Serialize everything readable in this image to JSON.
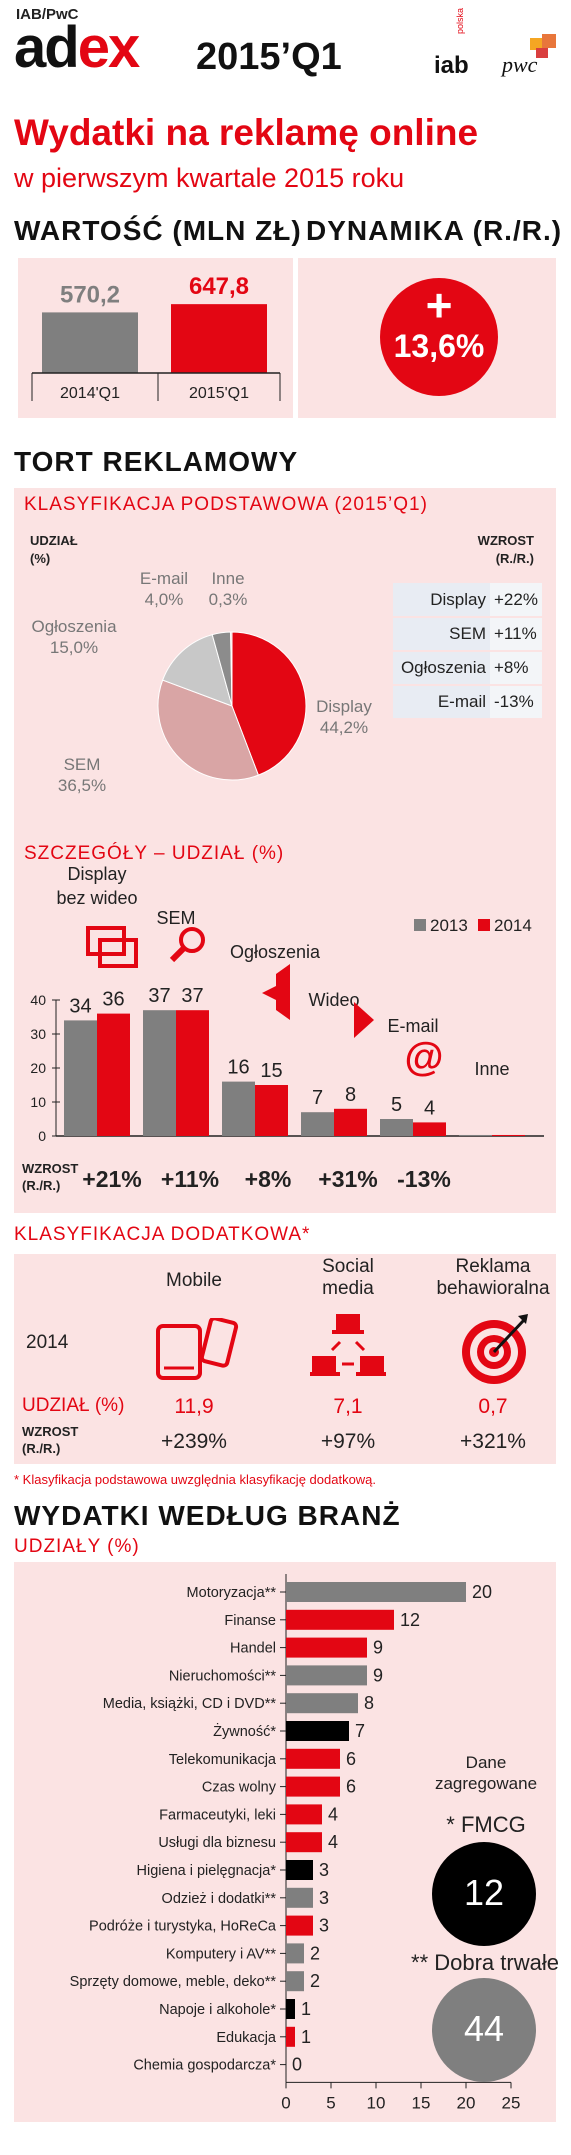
{
  "header": {
    "source": "IAB/PwC",
    "logo_ad": "ad",
    "logo_ex": "ex",
    "period": "2015’Q1",
    "iab_logo": "iab",
    "iab_sub": "polska",
    "pwc_logo": "pwc"
  },
  "headline": {
    "line1": "Wydatki na reklamę online",
    "line2": "w pierwszym kwartale 2015 roku"
  },
  "value_section": {
    "title": "WARTOŚĆ (MLN ZŁ)",
    "dynamics_title": "DYNAMIKA (R./R.)",
    "dynamics_plus": "+",
    "dynamics_value": "13,6%",
    "colors": {
      "gray": "#7f7f7f",
      "red": "#e30613"
    }
  },
  "pie_section": {
    "title": "TORT REKLAMOWY",
    "subtitle": "KLASYFIKACJA PODSTAWOWA (2015’Q1)",
    "share_label_1": "UDZIAŁ",
    "share_label_2": "(%)",
    "growth_label_1": "WZROST",
    "growth_label_2": "(R./R.)",
    "growth_rows": [
      {
        "label": "Display",
        "value": "+22%"
      },
      {
        "label": "SEM",
        "value": "+11%"
      },
      {
        "label": "Ogłoszenia",
        "value": "+8%"
      },
      {
        "label": "E-mail",
        "value": "-13%"
      }
    ]
  },
  "details_section": {
    "subtitle": "SZCZEGÓŁY – UDZIAŁ (%)",
    "growth_label_1": "WZROST",
    "growth_label_2": "(R./R.)",
    "growth_values": [
      "+21%",
      "+11%",
      "+8%",
      "+31%",
      "-13%",
      ""
    ]
  },
  "extra_section": {
    "title": "KLASYFIKACJA DODATKOWA*",
    "year": "2014",
    "share_label": "UDZIAŁ (%)",
    "growth_label_1": "WZROST",
    "growth_label_2": "(R./R.)",
    "items": [
      {
        "name_1": "Mobile",
        "name_2": "",
        "share": "11,9",
        "growth": "+239%"
      },
      {
        "name_1": "Social",
        "name_2": "media",
        "share": "7,1",
        "growth": "+97%"
      },
      {
        "name_1": "Reklama",
        "name_2": "behawioralna",
        "share": "0,7",
        "growth": "+321%"
      }
    ],
    "footnote": "* Klasyfikacja podstawowa uwzględnia klasyfikację dodatkową."
  },
  "industry_section": {
    "title": "WYDATKI WEDŁUG BRANŻ",
    "subtitle": "UDZIAŁY (%)",
    "aggregated_1": "Dane",
    "aggregated_2": "zagregowane",
    "fmcg_label": "* FMCG",
    "fmcg_value": "12",
    "durable_label": "** Dobra trwałe",
    "durable_value": "44"
  },
  "chart_data": [
    {
      "type": "bar",
      "categories": [
        "2014'Q1",
        "2015'Q1"
      ],
      "values": [
        570.2,
        647.8
      ],
      "value_labels": [
        "570,2",
        "647,8"
      ],
      "colors": [
        "#7f7f7f",
        "#e30613"
      ]
    },
    {
      "type": "pie",
      "categories": [
        "Display",
        "SEM",
        "Ogłoszenia",
        "E-mail",
        "Inne"
      ],
      "values": [
        44.2,
        36.5,
        15.0,
        4.0,
        0.3
      ],
      "value_labels": [
        "44,2%",
        "36,5%",
        "15,0%",
        "4,0%",
        "0,3%"
      ],
      "colors": [
        "#e30613",
        "#d9a5a5",
        "#c8c8c8",
        "#8c8c8c",
        "#f0b8b8"
      ]
    },
    {
      "type": "bar",
      "categories": [
        "Display bez wideo",
        "SEM",
        "Ogłoszenia",
        "Wideo",
        "E-mail",
        "Inne"
      ],
      "category_lines": [
        [
          "Display",
          "bez wideo"
        ],
        [
          "SEM"
        ],
        [
          "Ogłoszenia"
        ],
        [
          "Wideo"
        ],
        [
          "E-mail"
        ],
        [
          "Inne"
        ]
      ],
      "series": [
        {
          "name": "2013",
          "values": [
            34,
            37,
            16,
            7,
            5,
            0.3
          ],
          "labels": [
            "34",
            "37",
            "16",
            "7",
            "5",
            ""
          ],
          "color": "#7f7f7f"
        },
        {
          "name": "2014",
          "values": [
            36,
            37,
            15,
            8,
            4,
            0.3
          ],
          "labels": [
            "36",
            "37",
            "15",
            "8",
            "4",
            ""
          ],
          "color": "#e30613"
        }
      ],
      "ylim": [
        0,
        40
      ],
      "yticks": [
        0,
        10,
        20,
        30,
        40
      ],
      "legend": "top-right"
    },
    {
      "type": "bar",
      "orientation": "horizontal",
      "categories": [
        "Motoryzacja**",
        "Finanse",
        "Handel",
        "Nieruchomości**",
        "Media, książki, CD i DVD**",
        "Żywność*",
        "Telekomunikacja",
        "Czas wolny",
        "Farmaceutyki, leki",
        "Usługi dla biznesu",
        "Higiena i pielęgnacja*",
        "Odzież i dodatki**",
        "Podróże i turystyka, HoReCa",
        "Komputery i AV**",
        "Sprzęty domowe, meble, deko**",
        "Napoje i alkohole*",
        "Edukacja",
        "Chemia gospodarcza*"
      ],
      "values": [
        20,
        12,
        9,
        9,
        8,
        7,
        6,
        6,
        4,
        4,
        3,
        3,
        3,
        2,
        2,
        1,
        1,
        0
      ],
      "colors": [
        "#7f7f7f",
        "#e30613",
        "#e30613",
        "#7f7f7f",
        "#7f7f7f",
        "#000000",
        "#e30613",
        "#e30613",
        "#e30613",
        "#e30613",
        "#000000",
        "#7f7f7f",
        "#e30613",
        "#7f7f7f",
        "#7f7f7f",
        "#000000",
        "#e30613",
        "#000000"
      ],
      "xlim": [
        0,
        25
      ],
      "xticks": [
        0,
        5,
        10,
        15,
        20,
        25
      ]
    }
  ]
}
